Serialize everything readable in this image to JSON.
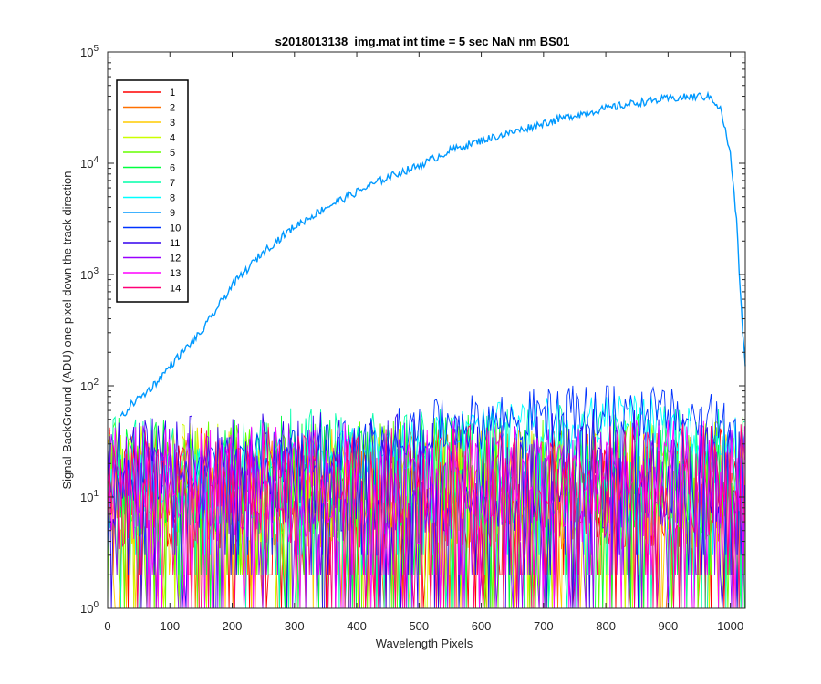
{
  "chart_data": {
    "type": "line",
    "title": "s2018013138_img.mat int time = 5 sec  NaN nm BS01",
    "xlabel": "Wavelength Pixels",
    "ylabel": "Signal-BackGround (ADU) one pixel down the track direction",
    "x_scale": "linear",
    "y_scale": "log",
    "xlim": [
      0,
      1024
    ],
    "ylim": [
      1,
      100000
    ],
    "x_ticks": [
      0,
      100,
      200,
      300,
      400,
      500,
      600,
      700,
      800,
      900,
      1000
    ],
    "x_tick_labels": [
      "0",
      "100",
      "200",
      "300",
      "400",
      "500",
      "600",
      "700",
      "800",
      "900",
      "1000"
    ],
    "y_ticks": [
      1,
      10,
      100,
      1000,
      10000,
      100000
    ],
    "y_tick_labels": [
      {
        "base": "10",
        "exp": "0"
      },
      {
        "base": "10",
        "exp": "1"
      },
      {
        "base": "10",
        "exp": "2"
      },
      {
        "base": "10",
        "exp": "3"
      },
      {
        "base": "10",
        "exp": "4"
      },
      {
        "base": "10",
        "exp": "5"
      }
    ],
    "grid": false,
    "legend_position": "top-left",
    "series": [
      {
        "name": "1",
        "color": "#ff0000",
        "x": [
          0,
          1024
        ],
        "y": [
          12,
          12
        ],
        "noise": "high"
      },
      {
        "name": "2",
        "color": "#ff7000",
        "x": [
          0,
          1024
        ],
        "y": [
          12,
          12
        ],
        "noise": "high"
      },
      {
        "name": "3",
        "color": "#ffcc00",
        "x": [
          0,
          1024
        ],
        "y": [
          12,
          12
        ],
        "noise": "high"
      },
      {
        "name": "4",
        "color": "#ccff00",
        "x": [
          0,
          1024
        ],
        "y": [
          13,
          14
        ],
        "noise": "high"
      },
      {
        "name": "5",
        "color": "#66ff00",
        "x": [
          0,
          1024
        ],
        "y": [
          14,
          15
        ],
        "noise": "high"
      },
      {
        "name": "6",
        "color": "#00ff40",
        "x": [
          0,
          1024
        ],
        "y": [
          15,
          16
        ],
        "noise": "high"
      },
      {
        "name": "7",
        "color": "#00ffaa",
        "x": [
          0,
          1024
        ],
        "y": [
          17,
          20
        ],
        "noise": "high"
      },
      {
        "name": "8",
        "color": "#00ffff",
        "x": [
          0,
          200,
          400,
          550,
          700,
          850,
          1000,
          1024
        ],
        "y": [
          14,
          18,
          24,
          35,
          45,
          50,
          30,
          28
        ],
        "noise": "med"
      },
      {
        "name": "9",
        "color": "#0099ff",
        "x": [
          20,
          40,
          60,
          80,
          100,
          120,
          150,
          200,
          250,
          300,
          350,
          400,
          450,
          500,
          550,
          600,
          650,
          700,
          750,
          800,
          850,
          900,
          950,
          970,
          985,
          1000,
          1010,
          1015,
          1020,
          1024
        ],
        "y": [
          50,
          70,
          85,
          110,
          150,
          200,
          300,
          800,
          1600,
          2700,
          4000,
          5500,
          7500,
          9500,
          13000,
          16000,
          19000,
          23000,
          27000,
          31000,
          35000,
          38000,
          40000,
          39000,
          30000,
          12000,
          3000,
          900,
          300,
          150
        ],
        "noise": "low"
      },
      {
        "name": "10",
        "color": "#0033ff",
        "x": [
          0,
          200,
          400,
          550,
          700,
          850,
          1000,
          1024
        ],
        "y": [
          15,
          20,
          30,
          45,
          55,
          60,
          45,
          40
        ],
        "noise": "med"
      },
      {
        "name": "11",
        "color": "#3300ee",
        "x": [
          0,
          1024
        ],
        "y": [
          16,
          18
        ],
        "noise": "high"
      },
      {
        "name": "12",
        "color": "#9900ff",
        "x": [
          0,
          1024
        ],
        "y": [
          13,
          14
        ],
        "noise": "high"
      },
      {
        "name": "13",
        "color": "#ff00ff",
        "x": [
          0,
          1024
        ],
        "y": [
          13,
          14
        ],
        "noise": "high"
      },
      {
        "name": "14",
        "color": "#ff0077",
        "x": [
          0,
          1024
        ],
        "y": [
          12,
          13
        ],
        "noise": "high"
      }
    ]
  }
}
